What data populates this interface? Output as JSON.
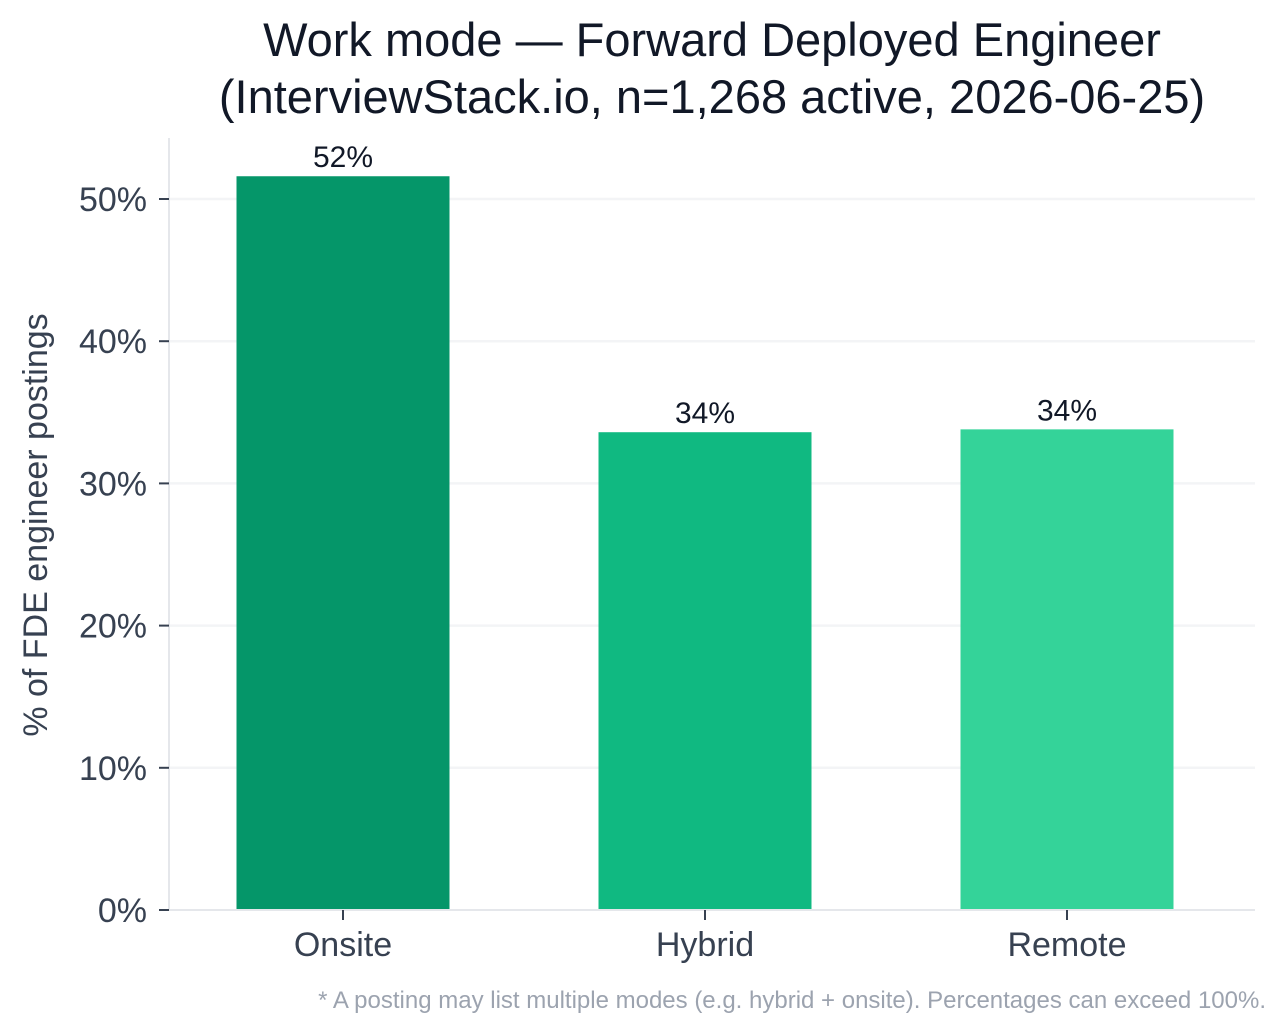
{
  "chart_data": {
    "type": "bar",
    "title": "Work mode — Forward Deployed Engineer",
    "subtitle": "(InterviewStack.io, n=1,268 active, 2026-06-25)",
    "categories": [
      "Onsite",
      "Hybrid",
      "Remote"
    ],
    "values": [
      51.6,
      33.6,
      33.8
    ],
    "data_labels": [
      "52%",
      "34%",
      "34%"
    ],
    "colors": [
      "#059669",
      "#10b981",
      "#34d399"
    ],
    "xlabel": "",
    "ylabel": "% of FDE engineer postings",
    "ylim": [
      0,
      54
    ],
    "yticks": [
      0,
      10,
      20,
      30,
      40,
      50
    ],
    "ytick_labels": [
      "0%",
      "10%",
      "20%",
      "30%",
      "40%",
      "50%"
    ],
    "grid": "horizontal",
    "legend": "none",
    "footnote": "* A posting may list multiple modes (e.g. hybrid + onsite). Percentages can exceed 100%."
  }
}
